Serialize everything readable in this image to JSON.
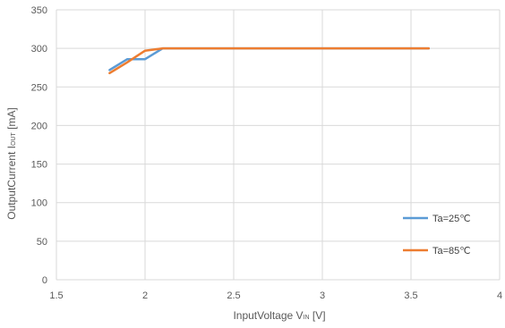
{
  "chart_data": {
    "type": "line",
    "xlabel": {
      "main": "InputVoltage V",
      "sub": "IN",
      "unit": " [V]"
    },
    "ylabel": {
      "main": "OutputCurrent I",
      "sub": "OUT",
      "unit": " [mA]"
    },
    "xlim": [
      1.5,
      4
    ],
    "ylim": [
      0,
      350
    ],
    "xticks": [
      "1.5",
      "2",
      "2.5",
      "3",
      "3.5",
      "4"
    ],
    "yticks": [
      "0",
      "50",
      "100",
      "150",
      "200",
      "250",
      "300",
      "350"
    ],
    "grid": true,
    "legend_position": "right",
    "series": [
      {
        "name": "Ta=25℃",
        "color": "#5B9BD5",
        "x": [
          1.8,
          1.9,
          2.0,
          2.1,
          2.2,
          2.5,
          3.0,
          3.5,
          3.6
        ],
        "y": [
          272,
          286,
          286,
          300,
          300,
          300,
          300,
          300,
          300
        ]
      },
      {
        "name": "Ta=85℃",
        "color": "#ED7D31",
        "x": [
          1.8,
          1.9,
          2.0,
          2.1,
          2.2,
          2.5,
          3.0,
          3.5,
          3.6
        ],
        "y": [
          268,
          282,
          297,
          300,
          300,
          300,
          300,
          300,
          300
        ]
      }
    ]
  }
}
